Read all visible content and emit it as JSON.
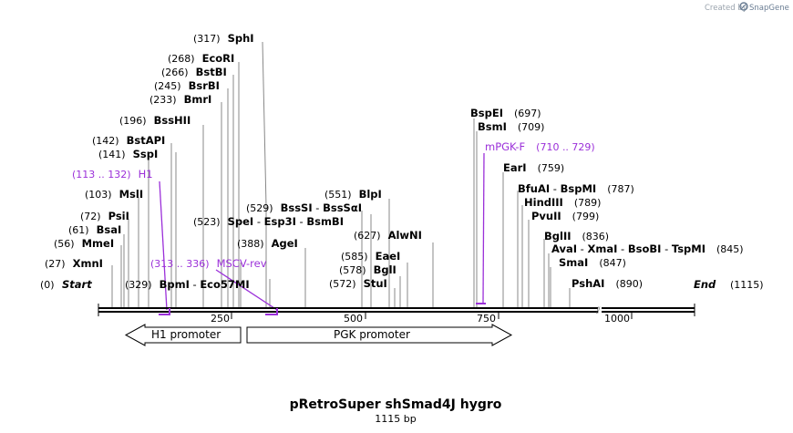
{
  "branding": {
    "created_by": "Created by",
    "app": "SnapGene"
  },
  "map": {
    "title": "pRetroSuper shSmad4J hygro",
    "length_label": "1115 bp",
    "total_bp": 1115,
    "ticks": [
      "250",
      "500",
      "750",
      "1000"
    ],
    "start": {
      "pos": "(0)",
      "name": "Start"
    },
    "end": {
      "pos": "(1115)",
      "name": "End"
    }
  },
  "enzymes": [
    {
      "pos": "(27)",
      "name": "XmnI"
    },
    {
      "pos": "(56)",
      "name": "MmeI"
    },
    {
      "pos": "(61)",
      "name": "BsaI"
    },
    {
      "pos": "(72)",
      "name": "PsiI"
    },
    {
      "pos": "(103)",
      "name": "MslI"
    },
    {
      "pos": "(141)",
      "name": "SspI"
    },
    {
      "pos": "(142)",
      "name": "BstAPI"
    },
    {
      "pos": "(196)",
      "name": "BssHII"
    },
    {
      "pos": "(233)",
      "name": "BmrI"
    },
    {
      "pos": "(245)",
      "name": "BsrBI"
    },
    {
      "pos": "(266)",
      "name": "BstBI"
    },
    {
      "pos": "(268)",
      "name": "EcoRI"
    },
    {
      "pos": "(317)",
      "name": "SphI"
    },
    {
      "pos": "(329)",
      "names": [
        "BpmI",
        "Eco57MI"
      ]
    },
    {
      "pos": "(523)",
      "names": [
        "SpeI",
        "Esp3I",
        "BsmBI"
      ]
    },
    {
      "pos": "(388)",
      "name": "AgeI"
    },
    {
      "pos": "(529)",
      "names": [
        "BssSI",
        "BssSαI"
      ]
    },
    {
      "pos": "(551)",
      "name": "BlpI"
    },
    {
      "pos": "(627)",
      "name": "AlwNI"
    },
    {
      "pos": "(585)",
      "name": "EaeI"
    },
    {
      "pos": "(578)",
      "name": "BglI"
    },
    {
      "pos": "(572)",
      "name": "StuI"
    },
    {
      "pos": "(697)",
      "name": "BspEI"
    },
    {
      "pos": "(709)",
      "name": "BsmI"
    },
    {
      "pos": "(759)",
      "name": "EarI"
    },
    {
      "pos": "(787)",
      "names": [
        "BfuAI",
        "BspMI"
      ]
    },
    {
      "pos": "(789)",
      "name": "HindIII"
    },
    {
      "pos": "(799)",
      "name": "PvuII"
    },
    {
      "pos": "(836)",
      "name": "BglII"
    },
    {
      "pos": "(845)",
      "names": [
        "AvaI",
        "XmaI",
        "BsoBI",
        "TspMI"
      ]
    },
    {
      "pos": "(847)",
      "name": "SmaI"
    },
    {
      "pos": "(890)",
      "name": "PshAI"
    }
  ],
  "primers": [
    {
      "pos": "(113 .. 132)",
      "name": "H1"
    },
    {
      "pos": "(313 .. 336)",
      "name": "MSCV-rev"
    },
    {
      "pos": "(710 .. 729)",
      "name": "mPGK-F"
    }
  ],
  "features": [
    {
      "name": "H1 promoter",
      "direction": "reverse"
    },
    {
      "name": "PGK promoter",
      "direction": "forward"
    }
  ],
  "colors": {
    "primer": "#9b30d9",
    "line": "#888888",
    "backbone": "#000000"
  }
}
